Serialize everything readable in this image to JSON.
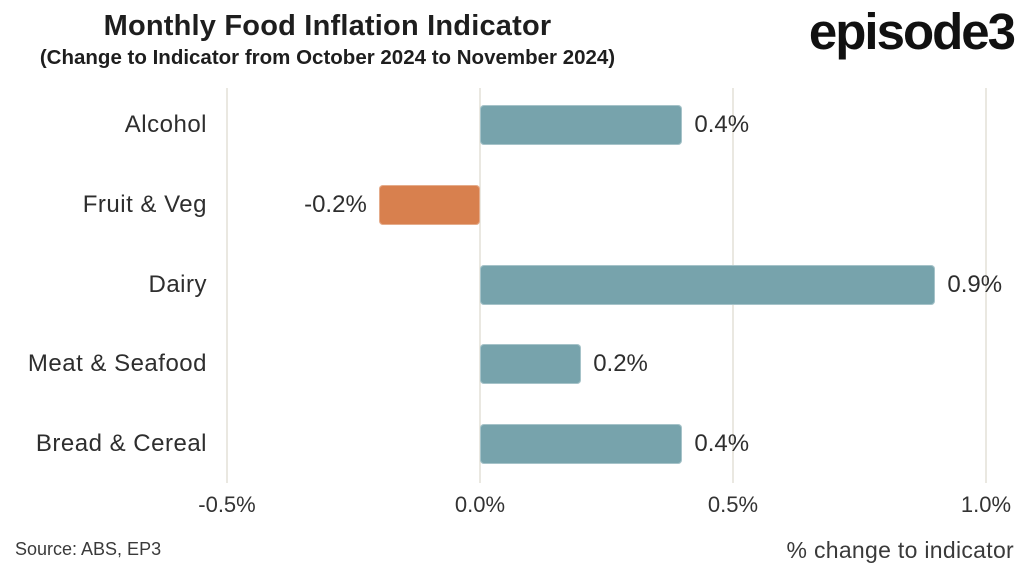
{
  "header": {
    "title": "Monthly Food Inflation Indicator",
    "subtitle": "(Change to Indicator from October 2024 to November 2024)",
    "logo_text": "episode3"
  },
  "chart_data": {
    "type": "bar",
    "orientation": "horizontal",
    "title": "Monthly Food Inflation Indicator",
    "subtitle": "(Change to Indicator from October 2024 to November 2024)",
    "categories": [
      "Alcohol",
      "Fruit & Veg",
      "Dairy",
      "Meat & Seafood",
      "Bread & Cereal"
    ],
    "values": [
      0.4,
      -0.2,
      0.9,
      0.2,
      0.4
    ],
    "value_labels": [
      "0.4%",
      "-0.2%",
      "0.9%",
      "0.2%",
      "0.4%"
    ],
    "xlabel": "% change to indicator",
    "x_ticks": [
      -0.5,
      0.0,
      0.5,
      1.0
    ],
    "x_tick_labels": [
      "-0.5%",
      "0.0%",
      "0.5%",
      "1.0%"
    ],
    "xlim": [
      -0.53,
      1.07
    ],
    "grid": "vertical-only",
    "legend": "none",
    "colors": {
      "positive_bar": "#77a3ac",
      "negative_bar": "#d8804e",
      "gridline": "#eae8e1",
      "label_text": "#2e2e2e",
      "title_text": "#1e1e1e"
    }
  },
  "footer": {
    "source": "Source: ABS, EP3",
    "xlabel": "% change to indicator"
  }
}
